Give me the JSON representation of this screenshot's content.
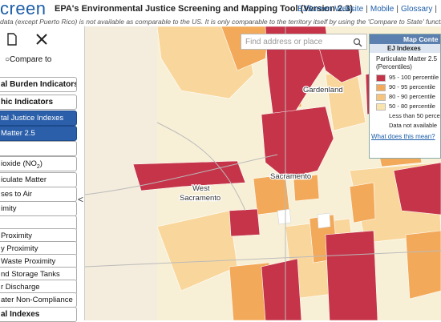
{
  "header": {
    "logo": "creen",
    "title": "EPA's Environmental Justice Screening and Mapping Tool (Version 2.3)",
    "links": [
      "EJScreen Website",
      "Mobile",
      "Glossary"
    ],
    "separator": "|",
    "notice": "data (except Puerto Rico) is not available as comparable to the US. It is only comparable to the territory itself by using the 'Compare to State' functionality. Like"
  },
  "sidebar": {
    "compare": "Compare to",
    "collapse": "<",
    "items": [
      {
        "label": "al Burden Indicators",
        "style": "heading"
      },
      {
        "label": "hic Indicators",
        "style": "heading"
      },
      {
        "label": "tal Justice Indexes",
        "style": "selected"
      },
      {
        "label": "Matter 2.5",
        "style": "selected-sub"
      },
      {
        "label": "",
        "style": "item"
      },
      {
        "label": "ioxide (NO",
        "sub": "2",
        "close": ")",
        "style": "item"
      },
      {
        "label": "iculate Matter",
        "style": "item"
      },
      {
        "label": "ses to Air",
        "style": "item"
      },
      {
        "label": "imity",
        "style": "item"
      },
      {
        "label": "",
        "style": "item"
      },
      {
        "label": "Proximity",
        "style": "item"
      },
      {
        "label": "y Proximity",
        "style": "item"
      },
      {
        "label": "Waste Proximity",
        "style": "item"
      },
      {
        "label": "nd Storage Tanks",
        "style": "item"
      },
      {
        "label": "r Discharge",
        "style": "item"
      },
      {
        "label": "ater Non-Compliance",
        "style": "item"
      },
      {
        "label": "al Indexes",
        "style": "heading"
      }
    ]
  },
  "search": {
    "placeholder": "Find address or place"
  },
  "map": {
    "labels": [
      "Gardenland",
      "Sacramento",
      "West",
      "Sacramento"
    ]
  },
  "legend": {
    "title": "Map Conte",
    "layer": "EJ Indexes",
    "subtitle": "Particulate Matter 2.5 (Percentiles)",
    "items": [
      "95 - 100 percentile",
      "90 - 95 percentile",
      "80 - 90 percentile",
      "50 - 80 percentile",
      "Less than 50 percenti",
      "Data not available"
    ],
    "link": "What does this mean?"
  }
}
